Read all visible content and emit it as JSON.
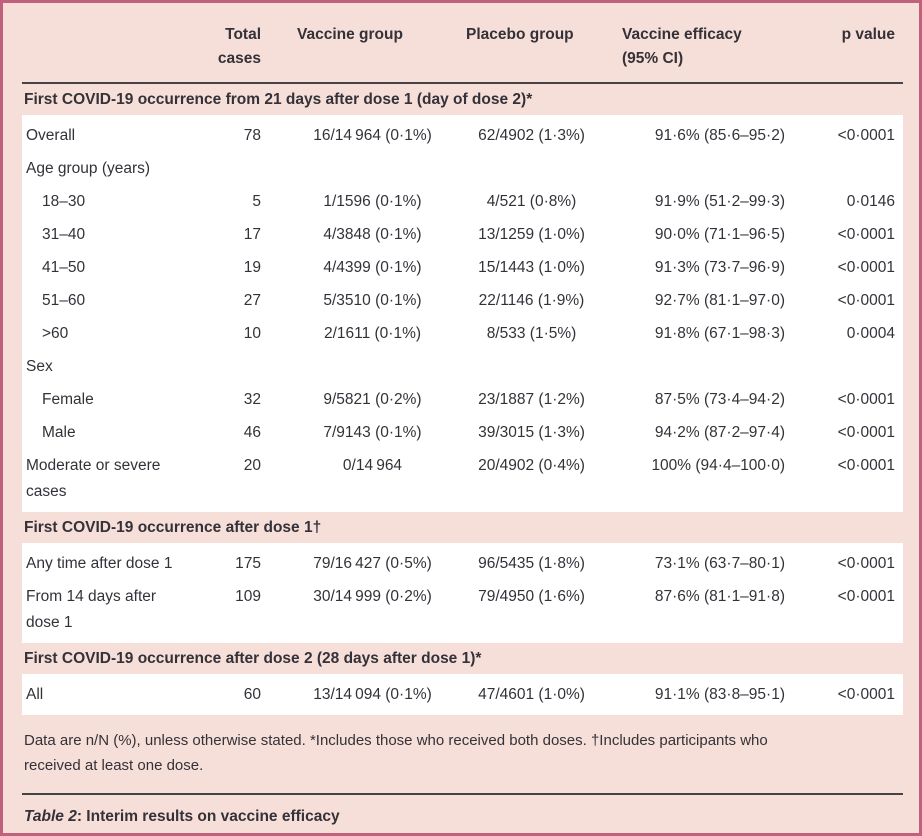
{
  "colors": {
    "border": "#c0617c",
    "background": "#f7dfd9",
    "row_background": "#ffffff",
    "rule": "#454345",
    "text": "#343138"
  },
  "header": {
    "total": "Total\ncases",
    "vaccine": "Vaccine group",
    "placebo": "Placebo group",
    "efficacy": "Vaccine efficacy\n(95% CI)",
    "pvalue": "p value"
  },
  "table": {
    "sections": [
      {
        "title": "First COVID-19 occurrence from 21 days after dose 1 (day of dose 2)*",
        "rows": [
          {
            "label": "Overall",
            "indent": false,
            "total": "78",
            "vaccine": "16/14 964 (0·1%)",
            "placebo": "62/4902 (1·3%)",
            "efficacy": "91·6% (85·6–95·2)",
            "p": "<0·0001"
          },
          {
            "label": "Age group (years)",
            "indent": false,
            "total": "",
            "vaccine": "",
            "placebo": "",
            "efficacy": "",
            "p": ""
          },
          {
            "label": "18–30",
            "indent": true,
            "total": "5",
            "vaccine": "1/1596 (0·1%)",
            "placebo": "4/521 (0·8%)",
            "efficacy": "91·9% (51·2–99·3)",
            "p": "0·0146"
          },
          {
            "label": "31–40",
            "indent": true,
            "total": "17",
            "vaccine": "4/3848 (0·1%)",
            "placebo": "13/1259 (1·0%)",
            "efficacy": "90·0% (71·1–96·5)",
            "p": "<0·0001"
          },
          {
            "label": "41–50",
            "indent": true,
            "total": "19",
            "vaccine": "4/4399 (0·1%)",
            "placebo": "15/1443 (1·0%)",
            "efficacy": "91·3% (73·7–96·9)",
            "p": "<0·0001"
          },
          {
            "label": "51–60",
            "indent": true,
            "total": "27",
            "vaccine": "5/3510 (0·1%)",
            "placebo": "22/1146 (1·9%)",
            "efficacy": "92·7% (81·1–97·0)",
            "p": "<0·0001"
          },
          {
            "label": ">60",
            "indent": true,
            "total": "10",
            "vaccine": "2/1611 (0·1%)",
            "placebo": "8/533 (1·5%)",
            "efficacy": "91·8% (67·1–98·3)",
            "p": "0·0004"
          },
          {
            "label": "Sex",
            "indent": false,
            "total": "",
            "vaccine": "",
            "placebo": "",
            "efficacy": "",
            "p": ""
          },
          {
            "label": "Female",
            "indent": true,
            "total": "32",
            "vaccine": "9/5821 (0·2%)",
            "placebo": "23/1887 (1·2%)",
            "efficacy": "87·5% (73·4–94·2)",
            "p": "<0·0001"
          },
          {
            "label": "Male",
            "indent": true,
            "total": "46",
            "vaccine": "7/9143 (0·1%)",
            "placebo": "39/3015 (1·3%)",
            "efficacy": "94·2% (87·2–97·4)",
            "p": "<0·0001"
          },
          {
            "label": "Moderate or severe\ncases",
            "indent": false,
            "total": "20",
            "vaccine": "0/14 964",
            "placebo": "20/4902 (0·4%)",
            "efficacy": "100% (94·4–100·0)",
            "p": "<0·0001"
          }
        ]
      },
      {
        "title": "First COVID-19 occurrence after dose 1†",
        "rows": [
          {
            "label": "Any time after dose 1",
            "indent": false,
            "total": "175",
            "vaccine": "79/16 427 (0·5%)",
            "placebo": "96/5435 (1·8%)",
            "efficacy": "73·1% (63·7–80·1)",
            "p": "<0·0001"
          },
          {
            "label": "From 14 days after\ndose 1",
            "indent": false,
            "total": "109",
            "vaccine": "30/14 999 (0·2%)",
            "placebo": "79/4950 (1·6%)",
            "efficacy": "87·6% (81·1–91·8)",
            "p": "<0·0001"
          }
        ]
      },
      {
        "title": "First COVID-19 occurrence after dose 2 (28 days after dose 1)*",
        "rows": [
          {
            "label": "All",
            "indent": false,
            "total": "60",
            "vaccine": "13/14 094 (0·1%)",
            "placebo": "47/4601 (1·0%)",
            "efficacy": "91·1% (83·8–95·1)",
            "p": "<0·0001"
          }
        ]
      }
    ]
  },
  "footnote": "Data are n/N (%), unless otherwise stated. *Includes those who received both doses. †Includes participants who\nreceived at least one dose.",
  "caption": {
    "label": "Table 2",
    "rest": ": Interim results on vaccine efficacy"
  }
}
